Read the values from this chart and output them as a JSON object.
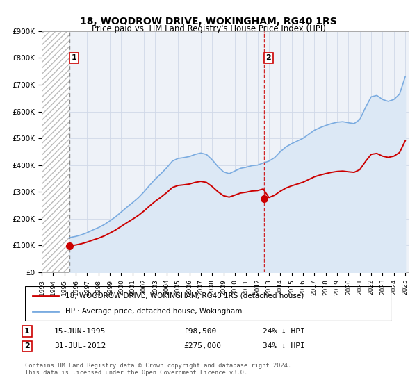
{
  "title": "18, WOODROW DRIVE, WOKINGHAM, RG40 1RS",
  "subtitle": "Price paid vs. HM Land Registry's House Price Index (HPI)",
  "ylim": [
    0,
    900000
  ],
  "yticks": [
    0,
    100000,
    200000,
    300000,
    400000,
    500000,
    600000,
    700000,
    800000,
    900000
  ],
  "ytick_labels": [
    "£0",
    "£100K",
    "£200K",
    "£300K",
    "£400K",
    "£500K",
    "£600K",
    "£700K",
    "£800K",
    "£900K"
  ],
  "xlim_start": 1993.0,
  "xlim_end": 2025.3,
  "hatch_end_year": 1995.46,
  "transaction1_year": 1995.46,
  "transaction1_price": 98500,
  "transaction1_label": "1",
  "transaction2_year": 2012.58,
  "transaction2_price": 275000,
  "transaction2_label": "2",
  "red_line_color": "#cc0000",
  "blue_line_color": "#7aabe0",
  "hpi_fill_color": "#dce8f5",
  "background_color": "#eef2f8",
  "grid_color": "#d0d8e8",
  "legend_line1": "18, WOODROW DRIVE, WOKINGHAM, RG40 1RS (detached house)",
  "legend_line2": "HPI: Average price, detached house, Wokingham",
  "note1_label": "1",
  "note1_date": "15-JUN-1995",
  "note1_price": "£98,500",
  "note1_hpi": "24% ↓ HPI",
  "note2_label": "2",
  "note2_date": "31-JUL-2012",
  "note2_price": "£275,000",
  "note2_hpi": "34% ↓ HPI",
  "footnote": "Contains HM Land Registry data © Crown copyright and database right 2024.\nThis data is licensed under the Open Government Licence v3.0.",
  "hpi_years": [
    1995.4,
    1995.5,
    1996,
    1996.5,
    1997,
    1997.5,
    1998,
    1998.5,
    1999,
    1999.5,
    2000,
    2000.5,
    2001,
    2001.5,
    2002,
    2002.5,
    2003,
    2003.5,
    2004,
    2004.5,
    2005,
    2005.5,
    2006,
    2006.5,
    2007,
    2007.5,
    2008,
    2008.5,
    2009,
    2009.5,
    2010,
    2010.5,
    2011,
    2011.5,
    2012,
    2012.5,
    2013,
    2013.5,
    2014,
    2014.5,
    2015,
    2015.5,
    2016,
    2016.5,
    2017,
    2017.5,
    2018,
    2018.5,
    2019,
    2019.5,
    2020,
    2020.5,
    2021,
    2021.5,
    2022,
    2022.5,
    2023,
    2023.5,
    2024,
    2024.5,
    2025
  ],
  "hpi_values": [
    128000,
    130000,
    134000,
    140000,
    148000,
    158000,
    167000,
    178000,
    192000,
    207000,
    225000,
    243000,
    260000,
    278000,
    300000,
    325000,
    348000,
    368000,
    390000,
    415000,
    425000,
    428000,
    432000,
    440000,
    445000,
    440000,
    420000,
    395000,
    375000,
    368000,
    378000,
    388000,
    392000,
    398000,
    400000,
    408000,
    415000,
    428000,
    450000,
    468000,
    480000,
    490000,
    500000,
    515000,
    530000,
    540000,
    548000,
    555000,
    560000,
    562000,
    558000,
    555000,
    570000,
    615000,
    655000,
    660000,
    645000,
    638000,
    645000,
    665000,
    730000
  ]
}
